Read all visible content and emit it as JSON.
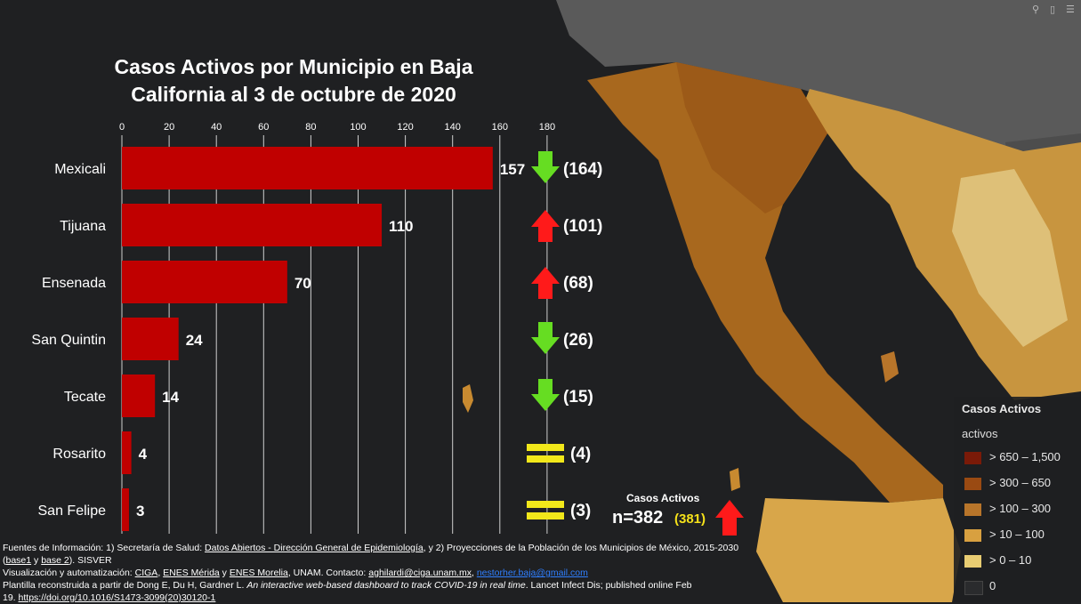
{
  "chart_data": {
    "type": "bar",
    "orientation": "horizontal",
    "title": "Casos Activos por Municipio en Baja California al 3 de octubre de 2020",
    "title_lines": [
      "Casos Activos por Municipio en Baja",
      "California al 3 de octubre de 2020"
    ],
    "categories": [
      "Mexicali",
      "Tijuana",
      "Ensenada",
      "San Quintin",
      "Tecate",
      "Rosarito",
      "San Felipe"
    ],
    "values": [
      157,
      110,
      70,
      24,
      14,
      4,
      3
    ],
    "previous_labels": [
      "(164)",
      "(101)",
      "(68)",
      "(26)",
      "(15)",
      "(4)",
      "(3)"
    ],
    "trend": [
      "down",
      "up",
      "up",
      "down",
      "down",
      "equal",
      "equal"
    ],
    "xlim": [
      0,
      180
    ],
    "ticks": [
      0,
      20,
      40,
      60,
      80,
      100,
      120,
      140,
      160,
      180
    ],
    "grid": true,
    "axis_position": "top",
    "bar_color": "#c00000"
  },
  "colors": {
    "down": "#66dd22",
    "up": "#ff1a1a",
    "equal": "#f2e81a",
    "background": "#1f2022"
  },
  "total": {
    "label": "Casos Activos",
    "value": "n=382",
    "previous": "(381)",
    "trend": "up"
  },
  "legend": {
    "title": "Casos Activos",
    "subtitle": "activos",
    "items": [
      {
        "label": "> 650 – 1,500",
        "color": "#7a1a08"
      },
      {
        "label": "> 300 – 650",
        "color": "#9a4a12"
      },
      {
        "label": "> 100 – 300",
        "color": "#b8752a"
      },
      {
        "label": "> 10 – 100",
        "color": "#d8a040"
      },
      {
        "label": "> 0 – 10",
        "color": "#e8cc72"
      },
      {
        "label": "0",
        "color": "#2a2b2d"
      }
    ]
  },
  "toolbar": {
    "search_icon": "search-icon",
    "bookmark_icon": "bookmark-icon",
    "list_icon": "list-icon"
  },
  "footer": {
    "l1_pre": "Fuentes de Información: 1) Secretaría de Salud: ",
    "l1_link": "Datos Abiertos - Dirección General de Epidemiología",
    "l1_post": ", y 2) Proyecciones de la Población de los Municipios de México, 2015-2030",
    "l2_open": "(",
    "l2_base1": "base1",
    "l2_y": " y ",
    "l2_base2": "base 2",
    "l2_post": "). SISVER",
    "l3_pre": " Visualización y automatización: ",
    "l3_ciga": "CIGA",
    "l3_sep1": ", ",
    "l3_merida": "ENES Mérida",
    "l3_y": " y ",
    "l3_morelia": "ENES Morelia",
    "l3_mid": ", UNAM. Contacto: ",
    "l3_email1": "aghilardi@ciga.unam.mx",
    "l3_sep2": ", ",
    "l3_email2": "nestorher.baja@gmail.com",
    "l4_pre": " Plantilla reconstruida a partir de Dong E, Du H, Gardner L. ",
    "l4_italic": "An interactive web-based dashboard to track COVID-19 in real time",
    "l4_post": ". Lancet Infect Dis; published online Feb",
    "l5_pre": "19. ",
    "l5_doi": "https://doi.org/10.1016/S1473-3099(20)30120-1"
  }
}
